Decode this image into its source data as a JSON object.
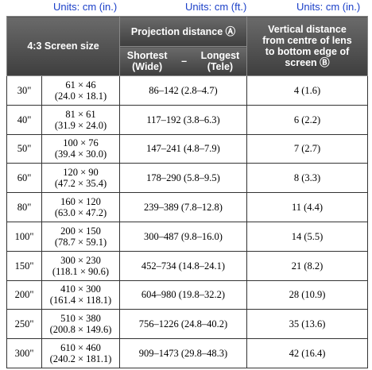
{
  "units": [
    "Units: cm (in.)",
    "Units: cm (ft.)",
    "Units: cm (in.)"
  ],
  "header": {
    "screen_size": "4:3 Screen size",
    "projection_distance": "Projection distance Ⓐ",
    "shortest": [
      "Shortest",
      "(Wide)"
    ],
    "dash": "–",
    "longest": [
      "Longest",
      "(Tele)"
    ],
    "vertical": [
      "Vertical distance",
      "from centre of lens",
      "to bottom edge of",
      "screen Ⓑ"
    ]
  },
  "rows": [
    [
      "30\"",
      "61 × 46",
      "(24.0 × 18.1)",
      "86–142 (2.8–4.7)",
      "4 (1.6)"
    ],
    [
      "40\"",
      "81 × 61",
      "(31.9 × 24.0)",
      "117–192 (3.8–6.3)",
      "6 (2.2)"
    ],
    [
      "50\"",
      "100 × 76",
      "(39.4 × 30.0)",
      "147–241 (4.8–7.9)",
      "7 (2.7)"
    ],
    [
      "60\"",
      "120 × 90",
      "(47.2 × 35.4)",
      "178–290 (5.8–9.5)",
      "8 (3.3)"
    ],
    [
      "80\"",
      "160 × 120",
      "(63.0 × 47.2)",
      "239–389 (7.8–12.8)",
      "11 (4.4)"
    ],
    [
      "100\"",
      "200 × 150",
      "(78.7 × 59.1)",
      "300–487 (9.8–16.0)",
      "14 (5.5)"
    ],
    [
      "150\"",
      "300 × 230",
      "(118.1 × 90.6)",
      "452–734 (14.8–24.1)",
      "21 (8.2)"
    ],
    [
      "200\"",
      "410 × 300",
      "(161.4 × 118.1)",
      "604–980 (19.8–32.2)",
      "28 (10.9)"
    ],
    [
      "250\"",
      "510 × 380",
      "(200.8 × 149.6)",
      "756–1226 (24.8–40.2)",
      "35 (13.6)"
    ],
    [
      "300\"",
      "610 × 460",
      "(240.2 × 181.1)",
      "909–1473 (29.8–48.3)",
      "42 (16.4)"
    ]
  ]
}
